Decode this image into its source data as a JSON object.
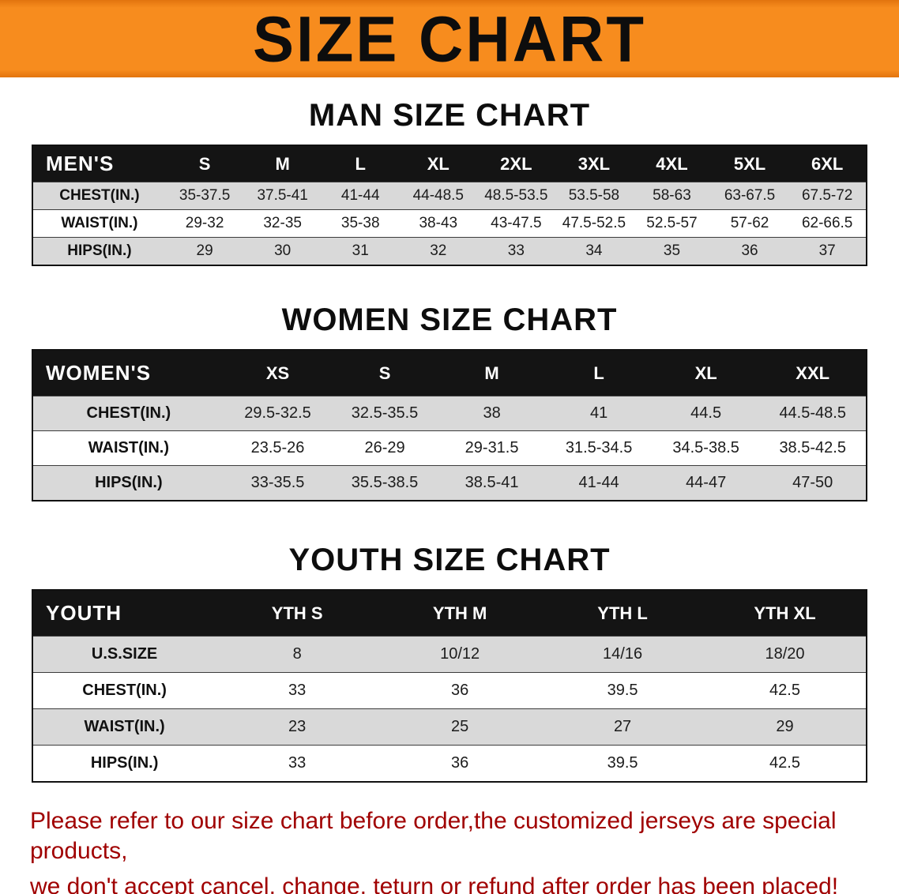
{
  "banner": {
    "title": "SIZE CHART",
    "bg_color": "#F78C1E",
    "text_color": "#0D0D0D"
  },
  "sections": [
    {
      "heading": "MAN SIZE CHART",
      "table": {
        "header": [
          "MEN'S",
          "S",
          "M",
          "L",
          "XL",
          "2XL",
          "3XL",
          "4XL",
          "5XL",
          "6XL"
        ],
        "rows": [
          [
            "CHEST(IN.)",
            "35-37.5",
            "37.5-41",
            "41-44",
            "44-48.5",
            "48.5-53.5",
            "53.5-58",
            "58-63",
            "63-67.5",
            "67.5-72"
          ],
          [
            "WAIST(IN.)",
            "29-32",
            "32-35",
            "35-38",
            "38-43",
            "43-47.5",
            "47.5-52.5",
            "52.5-57",
            "57-62",
            "62-66.5"
          ],
          [
            "HIPS(IN.)",
            "29",
            "30",
            "31",
            "32",
            "33",
            "34",
            "35",
            "36",
            "37"
          ]
        ]
      }
    },
    {
      "heading": "WOMEN SIZE CHART",
      "table": {
        "header": [
          "WOMEN'S",
          "XS",
          "S",
          "M",
          "L",
          "XL",
          "XXL"
        ],
        "rows": [
          [
            "CHEST(IN.)",
            "29.5-32.5",
            "32.5-35.5",
            "38",
            "41",
            "44.5",
            "44.5-48.5"
          ],
          [
            "WAIST(IN.)",
            "23.5-26",
            "26-29",
            "29-31.5",
            "31.5-34.5",
            "34.5-38.5",
            "38.5-42.5"
          ],
          [
            "HIPS(IN.)",
            "33-35.5",
            "35.5-38.5",
            "38.5-41",
            "41-44",
            "44-47",
            "47-50"
          ]
        ]
      }
    },
    {
      "heading": "YOUTH SIZE CHART",
      "table": {
        "header": [
          "YOUTH",
          "YTH S",
          "YTH M",
          "YTH L",
          "YTH XL"
        ],
        "rows": [
          [
            "U.S.SIZE",
            "8",
            "10/12",
            "14/16",
            "18/20"
          ],
          [
            "CHEST(IN.)",
            "33",
            "36",
            "39.5",
            "42.5"
          ],
          [
            "WAIST(IN.)",
            "23",
            "25",
            "27",
            "29"
          ],
          [
            "HIPS(IN.)",
            "33",
            "36",
            "39.5",
            "42.5"
          ]
        ]
      }
    }
  ],
  "footer": {
    "line1": "Please refer to our size chart before order,the customized jerseys are special products,",
    "line2": "we don't accept cancel, change, teturn or refund after order has been placed!",
    "text_color": "#A00000"
  }
}
